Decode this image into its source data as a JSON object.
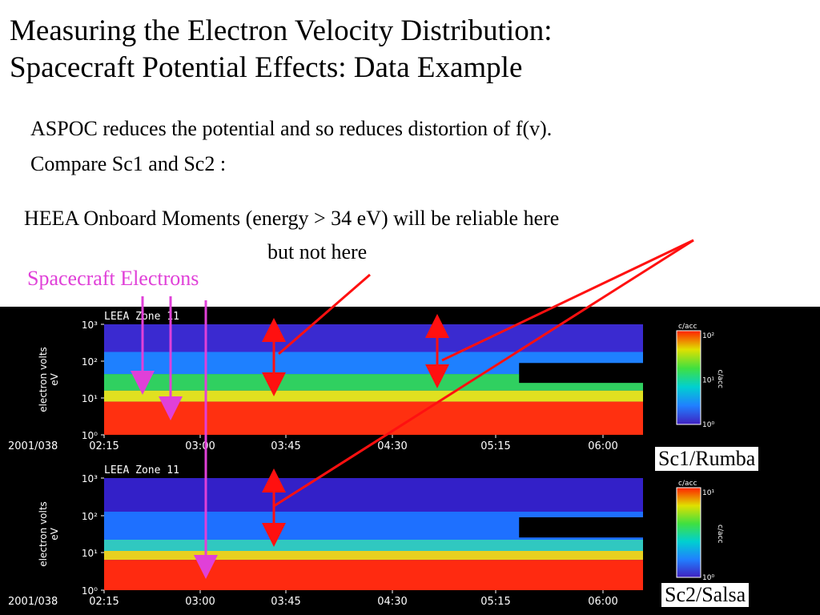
{
  "slide": {
    "title_line1": "Measuring the Electron Velocity Distribution:",
    "title_line2": "Spacecraft Potential Effects: Data Example",
    "text_line1": "ASPOC reduces the potential and so reduces distortion of f(v).",
    "text_line2": "Compare Sc1 and Sc2 :",
    "heea_line1": "HEEA Onboard Moments (energy > 34 eV) will be reliable here",
    "heea_line2": "but not here",
    "sc_electrons": "Spacecraft Electrons"
  },
  "colors": {
    "magenta": "#e040d8",
    "red_arrow": "#ff1010",
    "axis_text": "#ffffff",
    "spectrogram_bg": "#000000"
  },
  "chart_data": [
    {
      "type": "heatmap",
      "title": "LEEA Zone 11",
      "date": "2001/038",
      "ylabel": "electron volts\neV",
      "y_ticks": [
        "10³",
        "10²",
        "10¹",
        "10⁰"
      ],
      "x_ticks": [
        "02:15",
        "03:00",
        "03:45",
        "04:30",
        "05:15",
        "06:00"
      ],
      "panel_label": "Sc1/Rumba",
      "colorbar": {
        "unit": "c/acc",
        "ticks": [
          "10²",
          "10¹",
          "10⁰"
        ]
      }
    },
    {
      "type": "heatmap",
      "title": "LEEA Zone 11",
      "date": "2001/038",
      "ylabel": "electron volts\neV",
      "y_ticks": [
        "10³",
        "10²",
        "10¹",
        "10⁰"
      ],
      "x_ticks": [
        "02:15",
        "03:00",
        "03:45",
        "04:30",
        "05:15",
        "06:00"
      ],
      "panel_label": "Sc2/Salsa",
      "colorbar": {
        "unit": "c/acc",
        "ticks": [
          "10¹",
          "10⁰"
        ]
      }
    }
  ]
}
